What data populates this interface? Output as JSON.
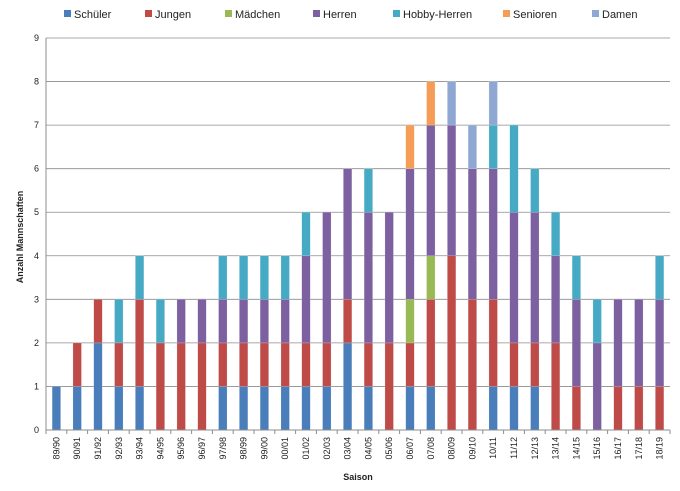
{
  "chart_data": {
    "type": "bar",
    "stacked": true,
    "title": "",
    "xlabel": "Saison",
    "ylabel": "Anzahl Mannschaften",
    "ylim": [
      0,
      9
    ],
    "yticks": [
      0,
      1,
      2,
      3,
      4,
      5,
      6,
      7,
      8,
      9
    ],
    "grid": true,
    "legend_position": "top",
    "categories": [
      "89/90",
      "90/91",
      "91/92",
      "92/93",
      "93/94",
      "94/95",
      "95/96",
      "96/97",
      "97/98",
      "98/99",
      "99/00",
      "00/01",
      "01/02",
      "02/03",
      "03/04",
      "04/05",
      "05/06",
      "06/07",
      "07/08",
      "08/09",
      "09/10",
      "10/11",
      "11/12",
      "12/13",
      "13/14",
      "14/15",
      "15/16",
      "16/17",
      "17/18",
      "18/19"
    ],
    "series": [
      {
        "name": "Schüler",
        "color": "#4a7ebb",
        "values": [
          1,
          1,
          2,
          1,
          1,
          0,
          0,
          0,
          1,
          1,
          1,
          1,
          1,
          1,
          2,
          1,
          0,
          1,
          1,
          0,
          0,
          1,
          1,
          1,
          0,
          0,
          0,
          0,
          0,
          0
        ]
      },
      {
        "name": "Jungen",
        "color": "#be4b48",
        "values": [
          0,
          1,
          1,
          1,
          2,
          2,
          2,
          2,
          1,
          1,
          1,
          1,
          1,
          1,
          1,
          1,
          2,
          1,
          2,
          4,
          3,
          2,
          1,
          1,
          2,
          1,
          0,
          1,
          1,
          1
        ]
      },
      {
        "name": "Mädchen",
        "color": "#98b954",
        "values": [
          0,
          0,
          0,
          0,
          0,
          0,
          0,
          0,
          0,
          0,
          0,
          0,
          0,
          0,
          0,
          0,
          0,
          1,
          1,
          0,
          0,
          0,
          0,
          0,
          0,
          0,
          0,
          0,
          0,
          0
        ]
      },
      {
        "name": "Herren",
        "color": "#7d60a0",
        "values": [
          0,
          0,
          0,
          0,
          0,
          0,
          1,
          1,
          1,
          1,
          1,
          1,
          2,
          3,
          3,
          3,
          3,
          3,
          3,
          3,
          3,
          3,
          3,
          3,
          2,
          2,
          2,
          2,
          2,
          2
        ]
      },
      {
        "name": "Hobby-Herren",
        "color": "#46aac5",
        "values": [
          0,
          0,
          0,
          1,
          1,
          1,
          0,
          0,
          1,
          1,
          1,
          1,
          1,
          0,
          0,
          1,
          0,
          0,
          0,
          0,
          0,
          1,
          2,
          1,
          1,
          1,
          1,
          0,
          0,
          1
        ]
      },
      {
        "name": "Senioren",
        "color": "#f59d56",
        "values": [
          0,
          0,
          0,
          0,
          0,
          0,
          0,
          0,
          0,
          0,
          0,
          0,
          0,
          0,
          0,
          0,
          0,
          1,
          1,
          0,
          0,
          0,
          0,
          0,
          0,
          0,
          0,
          0,
          0,
          0
        ]
      },
      {
        "name": "Damen",
        "color": "#8fa7d3",
        "values": [
          0,
          0,
          0,
          0,
          0,
          0,
          0,
          0,
          0,
          0,
          0,
          0,
          0,
          0,
          0,
          0,
          0,
          0,
          0,
          1,
          1,
          1,
          0,
          0,
          0,
          0,
          0,
          0,
          0,
          0
        ]
      }
    ]
  }
}
